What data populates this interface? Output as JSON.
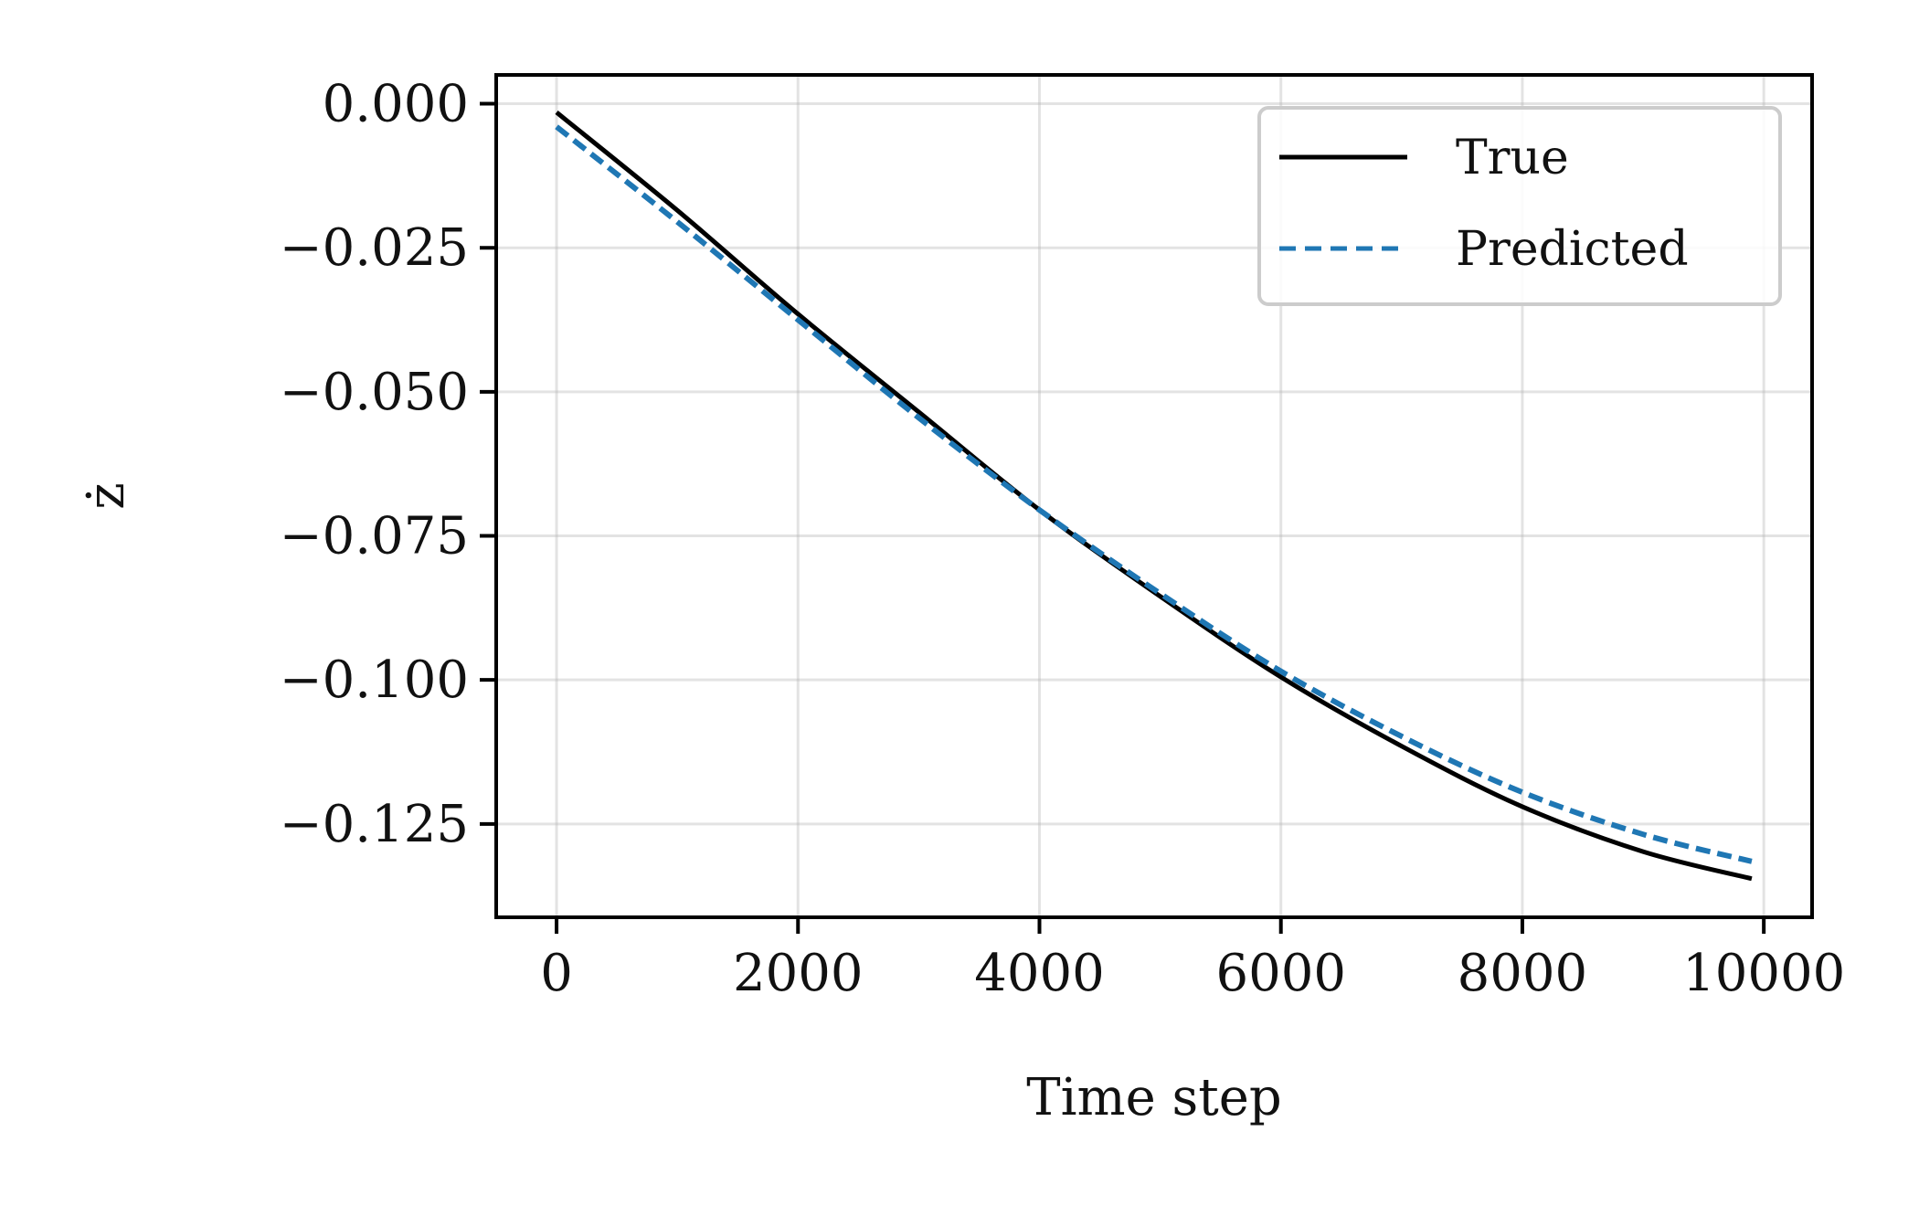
{
  "chart_data": {
    "type": "line",
    "title": "",
    "xlabel": "Time step",
    "ylabel": "ż",
    "xlim": [
      -500,
      10400
    ],
    "ylim": [
      -0.1412,
      0.005
    ],
    "grid": true,
    "legend_position": "top-right",
    "x_ticks": [
      0,
      2000,
      4000,
      6000,
      8000,
      10000
    ],
    "x_tick_labels": [
      "0",
      "2000",
      "4000",
      "6000",
      "8000",
      "10000"
    ],
    "y_ticks": [
      0.0,
      -0.025,
      -0.05,
      -0.075,
      -0.1,
      -0.125
    ],
    "y_tick_labels": [
      "0.000",
      "−0.025",
      "−0.050",
      "−0.075",
      "−0.100",
      "−0.125"
    ],
    "series": [
      {
        "name": "True",
        "color": "#000000",
        "style": "solid",
        "x": [
          0,
          1000,
          2000,
          3000,
          4000,
          5000,
          6000,
          7000,
          8000,
          9000,
          9900
        ],
        "y": [
          -0.0015,
          -0.0185,
          -0.0365,
          -0.0535,
          -0.0705,
          -0.0855,
          -0.0995,
          -0.1115,
          -0.122,
          -0.1298,
          -0.1345
        ]
      },
      {
        "name": "Predicted",
        "color": "#1f77b4",
        "style": "dashed",
        "x": [
          0,
          1000,
          2000,
          3000,
          4000,
          5000,
          6000,
          7000,
          8000,
          9000,
          9900
        ],
        "y": [
          -0.004,
          -0.0205,
          -0.0375,
          -0.0545,
          -0.0705,
          -0.085,
          -0.0985,
          -0.1098,
          -0.1195,
          -0.1268,
          -0.1315
        ]
      }
    ]
  }
}
